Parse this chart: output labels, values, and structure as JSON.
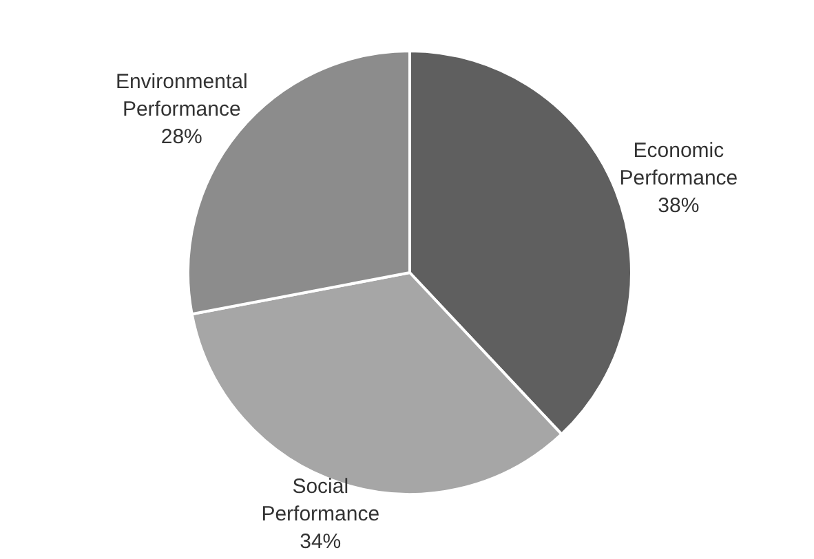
{
  "chart_data": {
    "type": "pie",
    "categories": [
      "Economic Performance",
      "Social Performance",
      "Environmental Performance"
    ],
    "values": [
      38,
      34,
      28
    ],
    "colors": [
      "#5f5f5f",
      "#a6a6a6",
      "#8c8c8c"
    ],
    "value_labels": [
      "38%",
      "34%",
      "28%"
    ],
    "legend": false
  }
}
